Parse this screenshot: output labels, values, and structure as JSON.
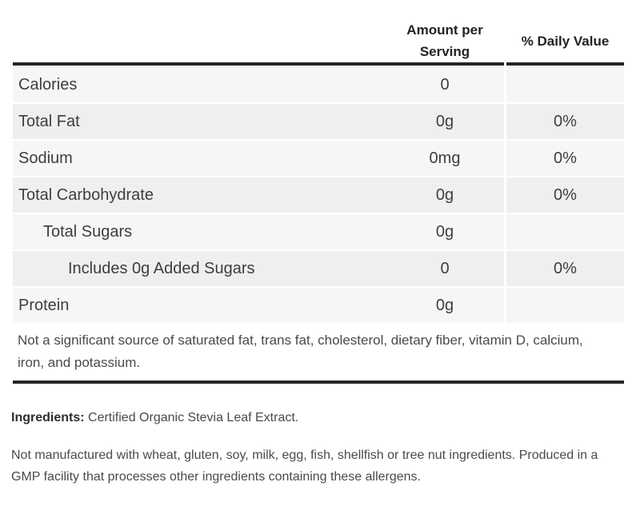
{
  "colors": {
    "thick_border": "#242424",
    "row_bg_light": "#f6f6f7",
    "row_bg_dark": "#efeff0"
  },
  "table": {
    "headers": {
      "amount": "Amount per Serving",
      "daily_value": "% Daily Value"
    },
    "rows": [
      {
        "label": "Calories",
        "indent": 0,
        "amount": "0",
        "daily_value": ""
      },
      {
        "label": "Total Fat",
        "indent": 0,
        "amount": "0g",
        "daily_value": "0%"
      },
      {
        "label": "Sodium",
        "indent": 0,
        "amount": "0mg",
        "daily_value": "0%"
      },
      {
        "label": "Total Carbohydrate",
        "indent": 0,
        "amount": "0g",
        "daily_value": "0%"
      },
      {
        "label": "Total Sugars",
        "indent": 1,
        "amount": "0g",
        "daily_value": ""
      },
      {
        "label": "Includes 0g Added Sugars",
        "indent": 2,
        "amount": "0",
        "daily_value": "0%"
      },
      {
        "label": "Protein",
        "indent": 0,
        "amount": "0g",
        "daily_value": ""
      }
    ],
    "footnote": "Not a significant source of saturated fat, trans fat, cholesterol, dietary fiber, vitamin D, calcium, iron, and potassium."
  },
  "ingredients": {
    "label": "Ingredients:",
    "text": "Certified Organic Stevia Leaf Extract."
  },
  "allergen_statement": "Not manufactured with wheat, gluten, soy, milk, egg, fish, shellfish or tree nut ingredients. Produced in a GMP facility that processes other ingredients containing these allergens."
}
